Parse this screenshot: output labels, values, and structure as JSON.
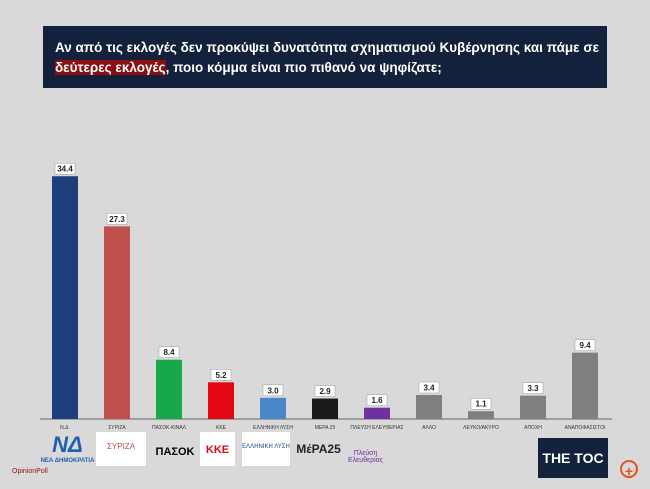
{
  "title": {
    "text": "Αν από τις εκλογές δεν προκύψει δυνατότητα σχηματισμού Κυβέρνησης και πάμε σε ",
    "highlight": "δεύτερες εκλογές",
    "text_end": ", ποιο κόμμα είναι πιο πιθανό να ψηφίζατε;"
  },
  "chart_data": {
    "type": "bar",
    "categories": [
      "Ν.Δ.",
      "ΣΥΡΙΖΑ",
      "ΠΑΣΟΚ-ΚΙΝΑΛ",
      "ΚΚΕ",
      "ΕΛΛΗΝΙΚΗ ΛΥΣΗ",
      "ΜΕΡΑ 25",
      "ΠΛΕΥΣΗ ΕΛΕΥΘΕΡΙΑΣ",
      "ΑΛΛΟ",
      "ΛΕΥΚΟ/ΑΚΥΡΟ",
      "ΑΠΟΧΗ",
      "ΑΝΑΠΟΦΑΣΙΣΤΟΙ"
    ],
    "values": [
      34.4,
      27.3,
      8.4,
      5.2,
      3.0,
      2.9,
      1.6,
      3.4,
      1.1,
      3.3,
      9.4
    ],
    "value_labels": [
      "34.4",
      "27.3",
      "8.4",
      "5.2",
      "3.0",
      "2.9",
      "1.6",
      "3.4",
      "1.1",
      "3.3",
      "9.4"
    ],
    "colors": [
      "#1f3f7a",
      "#c0504d",
      "#17a84a",
      "#e30613",
      "#4a86c8",
      "#1a1a1a",
      "#7030a0",
      "#7f7f7f",
      "#7f7f7f",
      "#7f7f7f",
      "#7f7f7f"
    ],
    "ylim": [
      0,
      35
    ],
    "grid": false
  },
  "logos": [
    "ΝΕΑ ΔΗΜΟΚΡΑΤΙΑ",
    "ΣΥΡΙΖΑ",
    "ΠΑΣΟΚ",
    "ΚΚΕ",
    "ΕΛΛΗΝΙΚΗ ΛΥΣΗ",
    "ΜέΡΑ25",
    "Πλεύση Ελευθερίας"
  ],
  "brand": "THE TOC",
  "source": "OpinionPoll"
}
